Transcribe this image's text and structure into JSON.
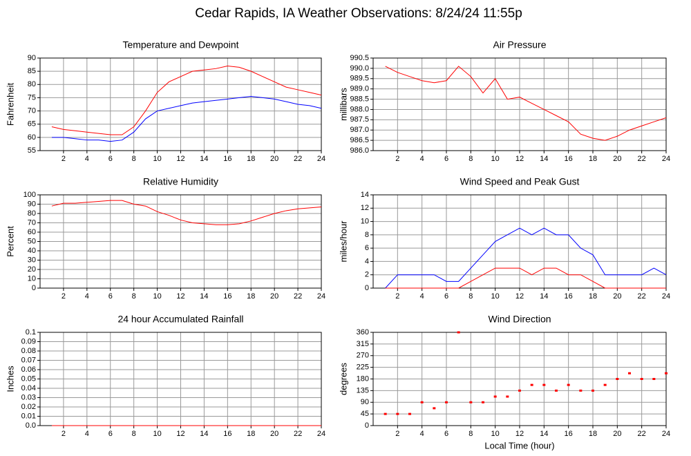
{
  "title": "Cedar Rapids, IA Weather Observations: 8/24/24 11:55p",
  "chart_data": [
    {
      "type": "line",
      "title": "Temperature and Dewpoint",
      "ylabel": "Fahrenheit",
      "x": [
        1,
        2,
        3,
        4,
        5,
        6,
        7,
        8,
        9,
        10,
        11,
        12,
        13,
        14,
        15,
        16,
        17,
        18,
        19,
        20,
        21,
        22,
        23,
        24
      ],
      "series": [
        {
          "color": "#ff0000",
          "values": [
            64,
            63,
            62.5,
            62,
            61.5,
            61,
            61,
            64,
            70,
            77,
            81,
            83,
            85,
            85.5,
            86,
            87,
            86.5,
            85,
            83,
            81,
            79,
            78,
            77,
            76
          ]
        },
        {
          "color": "#0000ff",
          "values": [
            60,
            60,
            59.5,
            59,
            59,
            58.5,
            59,
            62,
            67,
            70,
            71,
            72,
            73,
            73.5,
            74,
            74.5,
            75,
            75.5,
            75,
            74.5,
            73.5,
            72.5,
            72,
            71
          ]
        }
      ],
      "xlim": [
        0,
        24
      ],
      "xticks": [
        2,
        4,
        6,
        8,
        10,
        12,
        14,
        16,
        18,
        20,
        22,
        24
      ],
      "ylim": [
        55,
        90
      ],
      "yticks": [
        55,
        60,
        65,
        70,
        75,
        80,
        85,
        90
      ],
      "grid": true
    },
    {
      "type": "line",
      "title": "Air Pressure",
      "ylabel": "millibars",
      "x": [
        1,
        2,
        3,
        4,
        5,
        6,
        7,
        8,
        9,
        10,
        11,
        12,
        13,
        14,
        15,
        16,
        17,
        18,
        19,
        20,
        21,
        22,
        23,
        24
      ],
      "series": [
        {
          "color": "#ff0000",
          "values": [
            990.1,
            989.8,
            989.6,
            989.4,
            989.3,
            989.4,
            990.1,
            989.6,
            988.8,
            989.5,
            988.5,
            988.6,
            988.3,
            988.0,
            987.7,
            987.4,
            986.8,
            986.6,
            986.5,
            986.7,
            987.0,
            987.2,
            987.4,
            987.6
          ]
        }
      ],
      "xlim": [
        0,
        24
      ],
      "xticks": [
        2,
        4,
        6,
        8,
        10,
        12,
        14,
        16,
        18,
        20,
        22,
        24
      ],
      "ylim": [
        986,
        990.5
      ],
      "yticks": [
        {
          "value": 986,
          "label": "986.0"
        },
        986.5,
        {
          "value": 987,
          "label": "987.0"
        },
        987.5,
        {
          "value": 988,
          "label": "988.0"
        },
        988.5,
        {
          "value": 989,
          "label": "989.0"
        },
        989.5,
        {
          "value": 990,
          "label": "990.0"
        },
        990.5
      ],
      "grid": true
    },
    {
      "type": "line",
      "title": "Relative Humidity",
      "ylabel": "Percent",
      "x": [
        1,
        2,
        3,
        4,
        5,
        6,
        7,
        8,
        9,
        10,
        11,
        12,
        13,
        14,
        15,
        16,
        17,
        18,
        19,
        20,
        21,
        22,
        23,
        24
      ],
      "series": [
        {
          "color": "#ff0000",
          "values": [
            88,
            91,
            91,
            92,
            93,
            94,
            94,
            90,
            88,
            82,
            78,
            73,
            70,
            69,
            68,
            68,
            69,
            72,
            76,
            80,
            83,
            85,
            86,
            87
          ]
        }
      ],
      "xlim": [
        0,
        24
      ],
      "xticks": [
        2,
        4,
        6,
        8,
        10,
        12,
        14,
        16,
        18,
        20,
        22,
        24
      ],
      "ylim": [
        0,
        100
      ],
      "yticks": [
        0,
        10,
        20,
        30,
        40,
        50,
        60,
        70,
        80,
        90,
        100
      ],
      "grid": true
    },
    {
      "type": "line",
      "title": "Wind Speed and Peak Gust",
      "ylabel": "miles/hour",
      "x": [
        1,
        2,
        3,
        4,
        5,
        6,
        7,
        8,
        9,
        10,
        11,
        12,
        13,
        14,
        15,
        16,
        17,
        18,
        19,
        20,
        21,
        22,
        23,
        24
      ],
      "series": [
        {
          "color": "#0000ff",
          "values": [
            0,
            2,
            2,
            2,
            2,
            1,
            1,
            3,
            5,
            7,
            8,
            9,
            8,
            9,
            8,
            8,
            6,
            5,
            2,
            2,
            2,
            2,
            3,
            2
          ]
        },
        {
          "color": "#ff0000",
          "values": [
            0,
            0,
            0,
            0,
            0,
            0,
            0,
            1,
            2,
            3,
            3,
            3,
            2,
            3,
            3,
            2,
            2,
            1,
            0,
            0,
            0,
            0,
            0,
            0
          ]
        }
      ],
      "xlim": [
        0,
        24
      ],
      "xticks": [
        2,
        4,
        6,
        8,
        10,
        12,
        14,
        16,
        18,
        20,
        22,
        24
      ],
      "ylim": [
        0,
        14
      ],
      "yticks": [
        0,
        2,
        4,
        6,
        8,
        10,
        12,
        14
      ],
      "grid": true
    },
    {
      "type": "line",
      "title": "24 hour Accumulated Rainfall",
      "ylabel": "Inches",
      "x": [
        1,
        2,
        3,
        4,
        5,
        6,
        7,
        8,
        9,
        10,
        11,
        12,
        13,
        14,
        15,
        16,
        17,
        18,
        19,
        20,
        21,
        22,
        23,
        24
      ],
      "series": [
        {
          "color": "#ff0000",
          "values": [
            0,
            0,
            0,
            0,
            0,
            0,
            0,
            0,
            0,
            0,
            0,
            0,
            0,
            0,
            0,
            0,
            0,
            0,
            0,
            0,
            0,
            0,
            0,
            0
          ]
        }
      ],
      "xlim": [
        0,
        24
      ],
      "xticks": [
        2,
        4,
        6,
        8,
        10,
        12,
        14,
        16,
        18,
        20,
        22,
        24
      ],
      "ylim": [
        0,
        0.1
      ],
      "yticks": [
        {
          "value": 0,
          "label": "0.0"
        },
        0.01,
        0.02,
        0.03,
        0.04,
        0.05,
        0.06,
        0.07,
        0.08,
        0.09,
        {
          "value": 0.1,
          "label": "0.1"
        }
      ],
      "grid": true
    },
    {
      "type": "scatter",
      "title": "Wind Direction",
      "ylabel": "degrees",
      "xlabel": "Local Time (hour)",
      "x": [
        1,
        2,
        3,
        4,
        5,
        6,
        7,
        8,
        9,
        10,
        11,
        12,
        13,
        14,
        15,
        16,
        17,
        18,
        19,
        20,
        21,
        22,
        23,
        24
      ],
      "series": [
        {
          "color": "#ff0000",
          "values": [
            45,
            45,
            45,
            90,
            67,
            90,
            360,
            90,
            90,
            112,
            112,
            135,
            157,
            157,
            135,
            157,
            135,
            135,
            157,
            180,
            202,
            180,
            180,
            202
          ]
        }
      ],
      "xlim": [
        0,
        24
      ],
      "xticks": [
        2,
        4,
        6,
        8,
        10,
        12,
        14,
        16,
        18,
        20,
        22,
        24
      ],
      "ylim": [
        0,
        360
      ],
      "yticks": [
        0,
        45,
        90,
        135,
        180,
        225,
        270,
        315,
        360
      ],
      "grid": true
    }
  ]
}
